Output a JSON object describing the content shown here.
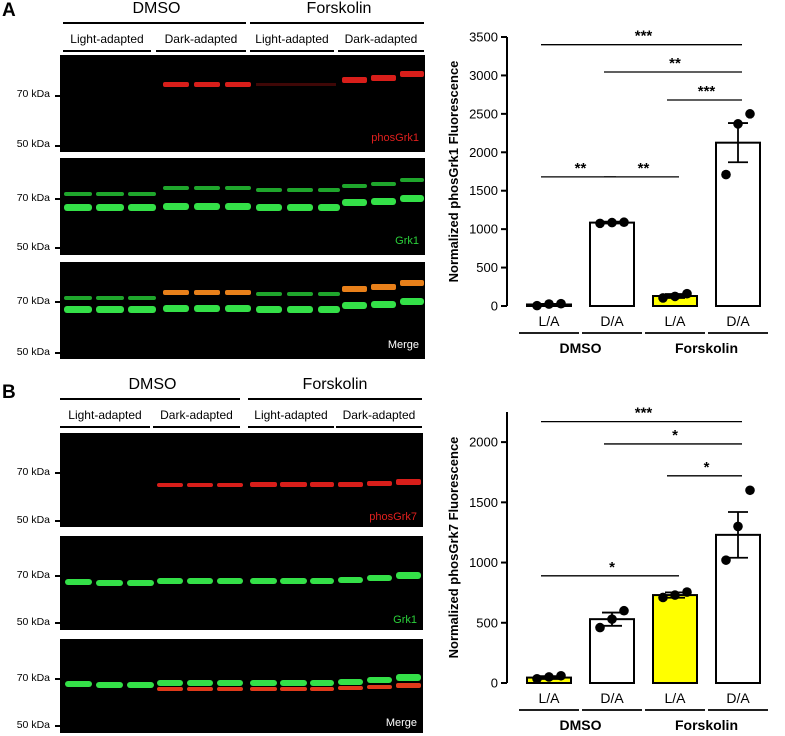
{
  "panels": [
    {
      "letter": "A",
      "treatments": [
        "DMSO",
        "Forskolin"
      ],
      "conditions": [
        "Light-adapted",
        "Dark-adapted",
        "Light-adapted",
        "Dark-adapted"
      ],
      "blots": [
        {
          "label": "phosGrk1",
          "label_color": "#e0201e",
          "markers": [
            "70 kDa",
            "50 kDa"
          ]
        },
        {
          "label": "Grk1",
          "label_color": "#2bd03a",
          "markers": [
            "70 kDa",
            "50 kDa"
          ]
        },
        {
          "label": "Merge",
          "label_color": "#ffffff",
          "markers": [
            "70 kDa",
            "50 kDa"
          ]
        }
      ]
    },
    {
      "letter": "B",
      "treatments": [
        "DMSO",
        "Forskolin"
      ],
      "conditions": [
        "Light-adapted",
        "Dark-adapted",
        "Light-adapted",
        "Dark-adapted"
      ],
      "blots": [
        {
          "label": "phosGrk7",
          "label_color": "#e0201e",
          "markers": [
            "70 kDa",
            "50 kDa"
          ]
        },
        {
          "label": "Grk1",
          "label_color": "#2bd03a",
          "markers": [
            "70 kDa",
            "50 kDa"
          ]
        },
        {
          "label": "Merge",
          "label_color": "#ffffff",
          "markers": [
            "70 kDa",
            "50 kDa"
          ]
        }
      ]
    }
  ],
  "chart_data": [
    {
      "type": "bar",
      "ylabel": "Normalized phosGrk1 Fluorescence",
      "ylim": [
        0,
        3500
      ],
      "yticks": [
        0,
        500,
        1000,
        1500,
        2000,
        2500,
        3000,
        3500
      ],
      "categories": [
        "L/A",
        "D/A",
        "L/A",
        "D/A"
      ],
      "groups": [
        "DMSO",
        "Forskolin"
      ],
      "values": [
        20,
        1085,
        130,
        2125
      ],
      "sem": [
        8,
        12,
        25,
        255
      ],
      "points": [
        [
          5,
          25,
          30
        ],
        [
          1075,
          1085,
          1090
        ],
        [
          105,
          125,
          160
        ],
        [
          1710,
          2370,
          2500
        ]
      ],
      "colors": [
        "#ffffff",
        "#ffffff",
        "#ffff00",
        "#ffffff"
      ],
      "comparisons": [
        {
          "from": 0,
          "to": 3,
          "label": "***",
          "y": 3400
        },
        {
          "from": 1,
          "to": 3,
          "label": "**",
          "y": 3045
        },
        {
          "from": 2,
          "to": 3,
          "label": "***",
          "y": 2680
        },
        {
          "from": 0,
          "to": 1,
          "label": "**",
          "y": 1680
        },
        {
          "from": 1,
          "to": 2,
          "label": "**",
          "y": 1680
        }
      ]
    },
    {
      "type": "bar",
      "ylabel": "Normalized phosGrk7 Fluorescence",
      "ylim": [
        0,
        2250
      ],
      "yticks": [
        0,
        500,
        1000,
        1500,
        2000
      ],
      "categories": [
        "L/A",
        "D/A",
        "L/A",
        "D/A"
      ],
      "groups": [
        "DMSO",
        "Forskolin"
      ],
      "values": [
        45,
        530,
        730,
        1230
      ],
      "sem": [
        12,
        55,
        22,
        190
      ],
      "points": [
        [
          35,
          50,
          60
        ],
        [
          460,
          530,
          600
        ],
        [
          710,
          730,
          755
        ],
        [
          1020,
          1300,
          1600
        ]
      ],
      "colors": [
        "#ffff00",
        "#ffffff",
        "#ffff00",
        "#ffffff"
      ],
      "comparisons": [
        {
          "from": 0,
          "to": 3,
          "label": "***",
          "y": 2170
        },
        {
          "from": 1,
          "to": 3,
          "label": "*",
          "y": 1985
        },
        {
          "from": 2,
          "to": 3,
          "label": "*",
          "y": 1720
        },
        {
          "from": 0,
          "to": 2,
          "label": "*",
          "y": 890
        }
      ]
    }
  ]
}
